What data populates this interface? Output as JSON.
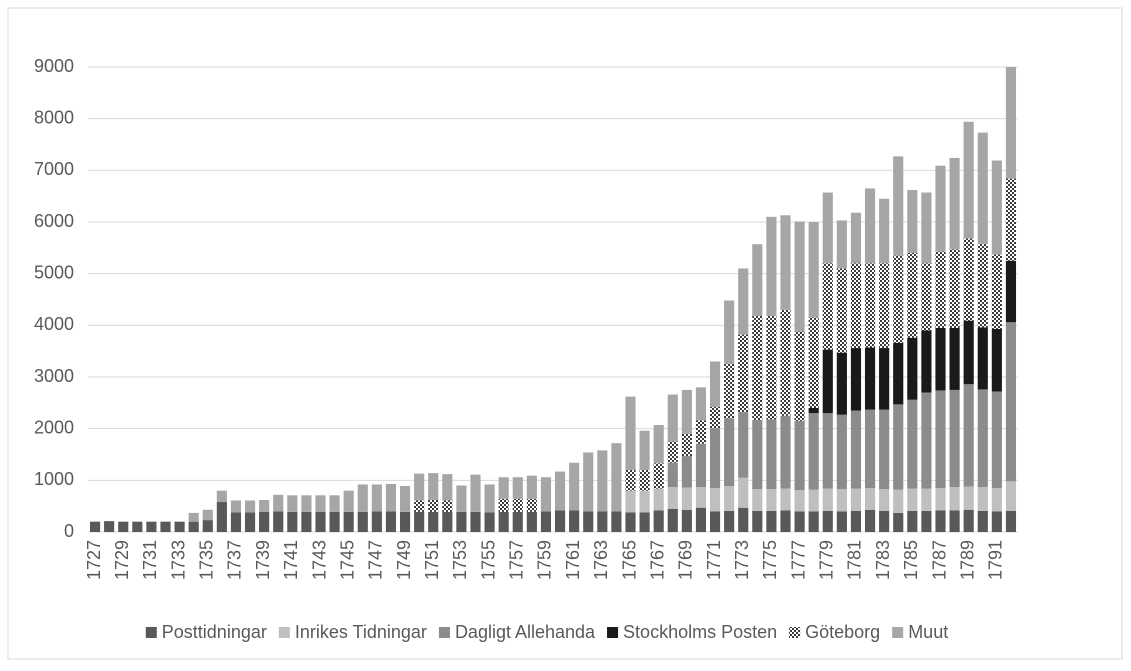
{
  "chart_data": {
    "type": "stacked_bar",
    "categories": [
      "1727",
      null,
      "1729",
      null,
      "1731",
      null,
      "1733",
      null,
      "1735",
      null,
      "1737",
      null,
      "1739",
      null,
      "1741",
      null,
      "1743",
      null,
      "1745",
      null,
      "1747",
      null,
      "1749",
      null,
      "1751",
      null,
      "1753",
      null,
      "1755",
      null,
      "1757",
      null,
      "1759",
      null,
      "1761",
      null,
      "1763",
      null,
      "1765",
      null,
      "1767",
      null,
      "1769",
      null,
      "1771",
      null,
      "1773",
      null,
      "1775",
      null,
      "1777",
      null,
      "1779",
      null,
      "1781",
      null,
      "1783",
      null,
      "1785",
      null,
      "1787",
      null,
      "1789",
      null,
      "1791",
      null
    ],
    "series": [
      {
        "name": "Posttidningar",
        "color": "#595959",
        "values": [
          200,
          210,
          200,
          200,
          200,
          200,
          200,
          200,
          230,
          580,
          380,
          380,
          390,
          400,
          390,
          390,
          390,
          390,
          390,
          390,
          400,
          400,
          390,
          390,
          390,
          390,
          390,
          390,
          380,
          390,
          390,
          390,
          400,
          420,
          420,
          400,
          400,
          400,
          380,
          380,
          420,
          450,
          430,
          470,
          400,
          410,
          470,
          410,
          410,
          420,
          400,
          400,
          410,
          400,
          410,
          430,
          410,
          370,
          410,
          410,
          420,
          420,
          430,
          410,
          400,
          410
        ]
      },
      {
        "name": "Inrikes Tidningar",
        "color": "#bfbfbf",
        "values": [
          0,
          0,
          0,
          0,
          0,
          0,
          0,
          0,
          0,
          0,
          0,
          0,
          0,
          0,
          0,
          0,
          0,
          0,
          0,
          0,
          0,
          0,
          0,
          0,
          0,
          0,
          0,
          0,
          0,
          0,
          0,
          0,
          0,
          0,
          0,
          0,
          0,
          0,
          420,
          420,
          420,
          420,
          430,
          400,
          450,
          480,
          580,
          420,
          420,
          420,
          410,
          420,
          430,
          430,
          430,
          420,
          420,
          450,
          430,
          430,
          430,
          450,
          450,
          460,
          450,
          570
        ]
      },
      {
        "name": "Dagligt Allehanda",
        "color": "#8c8c8c",
        "values": [
          0,
          0,
          0,
          0,
          0,
          0,
          0,
          0,
          0,
          0,
          0,
          0,
          0,
          0,
          0,
          0,
          0,
          0,
          0,
          0,
          0,
          0,
          0,
          0,
          0,
          0,
          0,
          0,
          0,
          0,
          0,
          0,
          0,
          0,
          0,
          0,
          0,
          0,
          0,
          0,
          0,
          470,
          610,
          840,
          1160,
          1310,
          1270,
          1340,
          1350,
          1410,
          1340,
          1480,
          1460,
          1440,
          1510,
          1520,
          1540,
          1650,
          1720,
          1860,
          1890,
          1880,
          1980,
          1890,
          1870,
          3080
        ]
      },
      {
        "name": "Stockholms Posten",
        "color": "#1a1a1a",
        "values": [
          0,
          0,
          0,
          0,
          0,
          0,
          0,
          0,
          0,
          0,
          0,
          0,
          0,
          0,
          0,
          0,
          0,
          0,
          0,
          0,
          0,
          0,
          0,
          0,
          0,
          0,
          0,
          0,
          0,
          0,
          0,
          0,
          0,
          0,
          0,
          0,
          0,
          0,
          0,
          0,
          0,
          0,
          0,
          0,
          0,
          0,
          0,
          0,
          0,
          0,
          0,
          100,
          1230,
          1200,
          1210,
          1200,
          1190,
          1190,
          1200,
          1200,
          1210,
          1200,
          1230,
          1200,
          1210,
          1190
        ]
      },
      {
        "name": "Göteborg",
        "color": "#3a3a3a",
        "pattern": "dotted",
        "values": [
          0,
          0,
          0,
          0,
          0,
          0,
          0,
          0,
          0,
          0,
          0,
          0,
          0,
          0,
          0,
          0,
          0,
          0,
          0,
          0,
          0,
          0,
          0,
          220,
          230,
          220,
          0,
          0,
          0,
          250,
          250,
          250,
          0,
          0,
          0,
          0,
          0,
          0,
          400,
          400,
          490,
          410,
          430,
          450,
          410,
          1060,
          1500,
          2010,
          2000,
          2050,
          1730,
          1750,
          1670,
          1630,
          1640,
          1630,
          1640,
          1690,
          1640,
          1300,
          1480,
          1520,
          1590,
          1620,
          1440,
          1590
        ]
      },
      {
        "name": "Muut",
        "color": "#a6a6a6",
        "values": [
          0,
          0,
          0,
          0,
          0,
          0,
          0,
          170,
          200,
          220,
          230,
          230,
          230,
          320,
          320,
          320,
          320,
          320,
          410,
          530,
          520,
          530,
          500,
          520,
          520,
          510,
          510,
          720,
          540,
          420,
          420,
          450,
          660,
          750,
          920,
          1140,
          1180,
          1320,
          1420,
          760,
          740,
          910,
          850,
          640,
          880,
          1220,
          1280,
          1390,
          1920,
          1830,
          2130,
          1850,
          1370,
          930,
          980,
          1450,
          1250,
          1920,
          1220,
          1370,
          1660,
          1770,
          2260,
          2150,
          1820,
          2160
        ]
      }
    ],
    "ylim": [
      0,
      9000
    ],
    "yticks": [
      0,
      1000,
      2000,
      3000,
      4000,
      5000,
      6000,
      7000,
      8000,
      9000
    ],
    "grid": true,
    "legend": "bottom"
  }
}
